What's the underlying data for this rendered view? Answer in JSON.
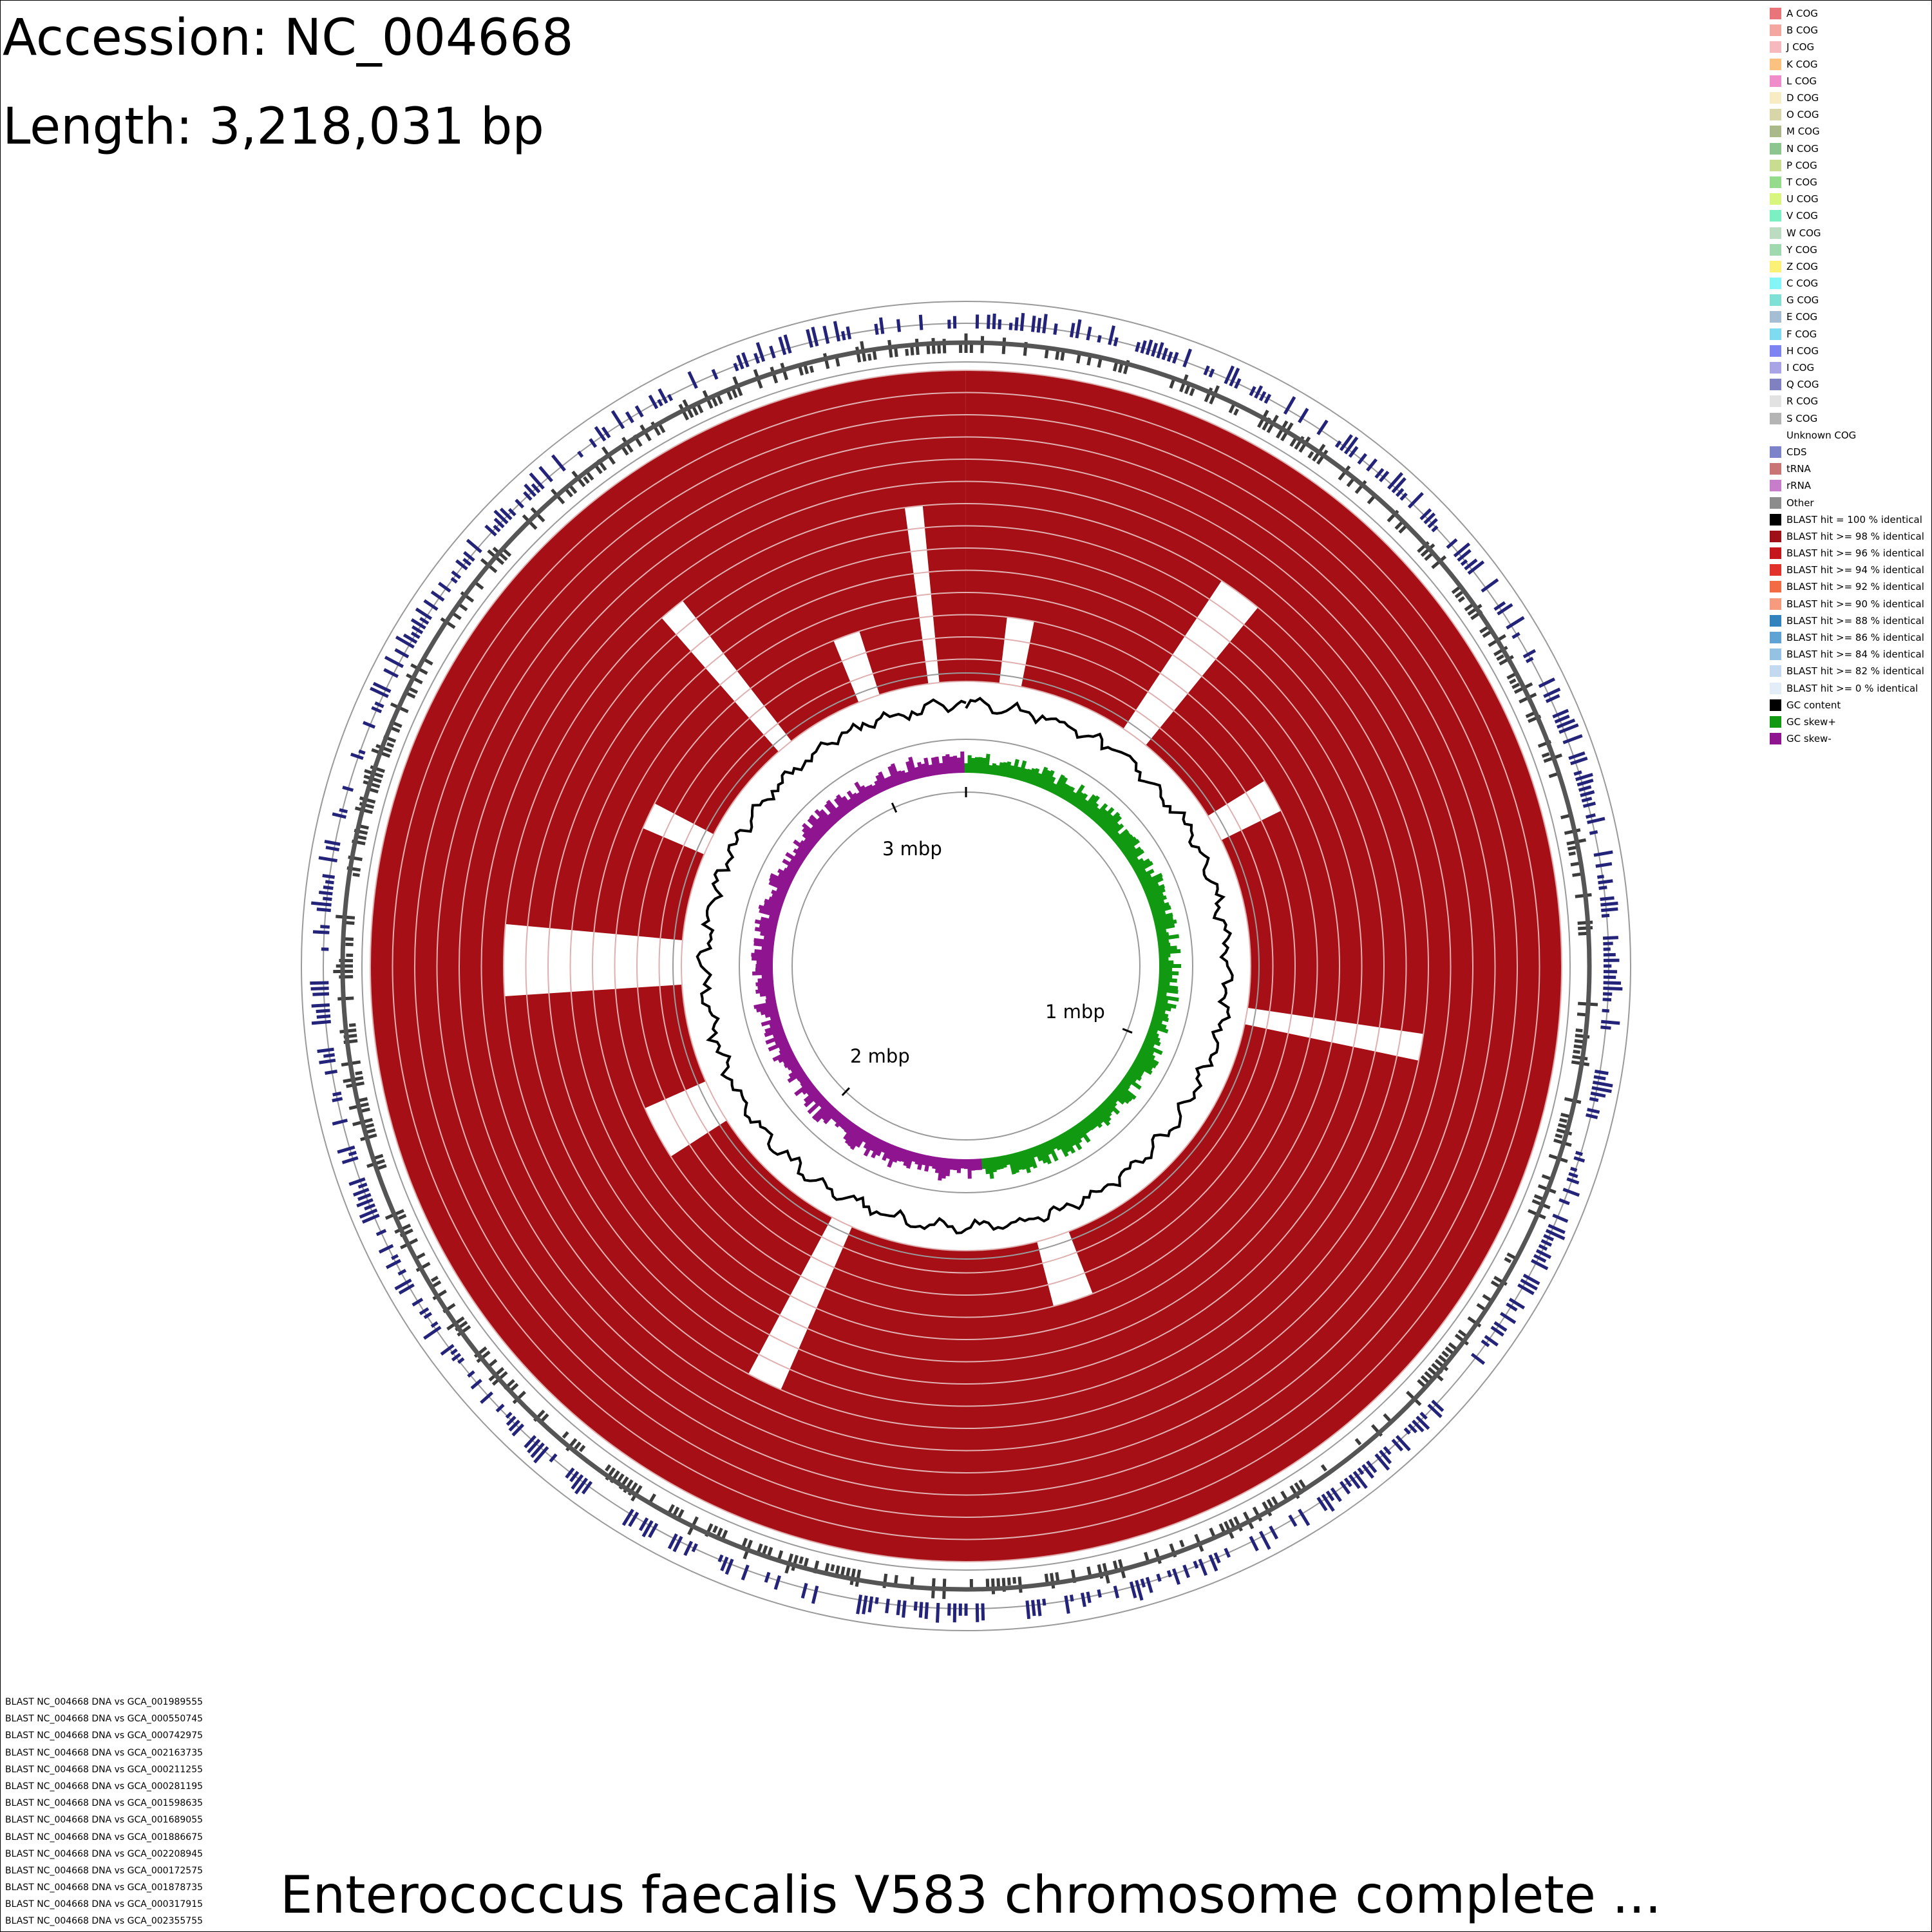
{
  "header": {
    "accession": "Accession: NC_004668",
    "length": "Length: 3,218,031 bp"
  },
  "title": "Enterococcus faecalis V583 chromosome complete ...",
  "scale_labels": [
    "1 mbp",
    "2 mbp",
    "3 mbp"
  ],
  "genome_length_bp": 3218031,
  "legend": [
    {
      "label": "A COG",
      "color": "#e9747a"
    },
    {
      "label": "B COG",
      "color": "#f4a6a0"
    },
    {
      "label": "J COG",
      "color": "#f6b9bd"
    },
    {
      "label": "K COG",
      "color": "#fbc27f"
    },
    {
      "label": "L COG",
      "color": "#f08cc9"
    },
    {
      "label": "D COG",
      "color": "#f7ecc4"
    },
    {
      "label": "O COG",
      "color": "#d8d5a8"
    },
    {
      "label": "M COG",
      "color": "#a9b98a"
    },
    {
      "label": "N COG",
      "color": "#8cc58e"
    },
    {
      "label": "P COG",
      "color": "#c8dd8f"
    },
    {
      "label": "T COG",
      "color": "#94dc8c"
    },
    {
      "label": "U COG",
      "color": "#d8f57e"
    },
    {
      "label": "V COG",
      "color": "#7bf0c2"
    },
    {
      "label": "W COG",
      "color": "#bcdcc2"
    },
    {
      "label": "Y COG",
      "color": "#a0d8b0"
    },
    {
      "label": "Z COG",
      "color": "#fbf176"
    },
    {
      "label": "C COG",
      "color": "#84f5f6"
    },
    {
      "label": "G COG",
      "color": "#7fe0d5"
    },
    {
      "label": "E COG",
      "color": "#a6bed3"
    },
    {
      "label": "F COG",
      "color": "#7fdbf0"
    },
    {
      "label": "H COG",
      "color": "#7d83f2"
    },
    {
      "label": "I COG",
      "color": "#a9a4e6"
    },
    {
      "label": "Q COG",
      "color": "#7f81c1"
    },
    {
      "label": "R COG",
      "color": "#e2e2e2"
    },
    {
      "label": "S COG",
      "color": "#b4b4b4"
    },
    {
      "label": "Unknown COG",
      "color": "#ffffff"
    },
    {
      "label": "CDS",
      "color": "#7d83c9"
    },
    {
      "label": "tRNA",
      "color": "#c97575"
    },
    {
      "label": "rRNA",
      "color": "#c77dc9"
    },
    {
      "label": "Other",
      "color": "#8c8c8c"
    },
    {
      "label": "BLAST hit = 100 % identical",
      "color": "#000000"
    },
    {
      "label": "BLAST hit >= 98 % identical",
      "color": "#9e0f17"
    },
    {
      "label": "BLAST hit >= 96 % identical",
      "color": "#c4161c"
    },
    {
      "label": "BLAST hit >= 94 % identical",
      "color": "#e2312a"
    },
    {
      "label": "BLAST hit >= 92 % identical",
      "color": "#f26b43"
    },
    {
      "label": "BLAST hit >= 90 % identical",
      "color": "#f79a7e"
    },
    {
      "label": "BLAST hit >= 88 % identical",
      "color": "#3282be"
    },
    {
      "label": "BLAST hit >= 86 % identical",
      "color": "#5fa2d4"
    },
    {
      "label": "BLAST hit >= 84 % identical",
      "color": "#95c2e2"
    },
    {
      "label": "BLAST hit >= 82 % identical",
      "color": "#c3d9ef"
    },
    {
      "label": "BLAST hit >= 0 % identical",
      "color": "#e3edf7"
    },
    {
      "label": "GC content",
      "color": "#000000"
    },
    {
      "label": "GC skew+",
      "color": "#119911"
    },
    {
      "label": "GC skew-",
      "color": "#8f148f"
    }
  ],
  "blast_tracks": [
    "BLAST NC_004668 DNA vs GCA_001989555",
    "BLAST NC_004668 DNA vs GCA_000550745",
    "BLAST NC_004668 DNA vs GCA_000742975",
    "BLAST NC_004668 DNA vs GCA_002163735",
    "BLAST NC_004668 DNA vs GCA_000211255",
    "BLAST NC_004668 DNA vs GCA_000281195",
    "BLAST NC_004668 DNA vs GCA_001598635",
    "BLAST NC_004668 DNA vs GCA_001689055",
    "BLAST NC_004668 DNA vs GCA_001886675",
    "BLAST NC_004668 DNA vs GCA_002208945",
    "BLAST NC_004668 DNA vs GCA_000172575",
    "BLAST NC_004668 DNA vs GCA_001878735",
    "BLAST NC_004668 DNA vs GCA_000317915",
    "BLAST NC_004668 DNA vs GCA_002355755"
  ],
  "colors": {
    "blast_main": "#a50f15",
    "cds": "#23237a",
    "cds_reverse": "#3c3c3c",
    "gc_content": "#000000",
    "gc_skew_plus": "#119911",
    "gc_skew_minus": "#8f148f",
    "ring_line": "#9a9a9a"
  },
  "blast_gaps_mbp": [
    [
      0.06,
      0.1
    ],
    [
      0.3,
      0.35
    ],
    [
      0.52,
      0.57
    ],
    [
      0.88,
      0.91
    ],
    [
      1.42,
      1.48
    ],
    [
      1.82,
      1.86
    ],
    [
      2.12,
      2.2
    ],
    [
      2.38,
      2.46
    ],
    [
      2.62,
      2.66
    ],
    [
      2.85,
      2.88
    ],
    [
      3.02,
      3.06
    ],
    [
      3.15,
      3.17
    ]
  ]
}
